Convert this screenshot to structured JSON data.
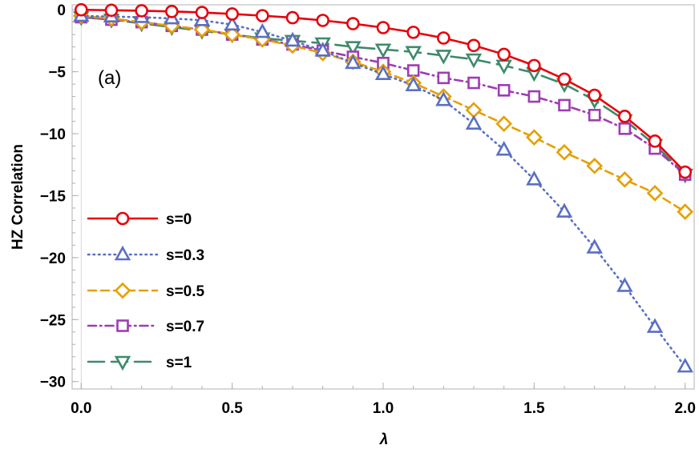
{
  "chart_data": {
    "type": "line",
    "title": "",
    "panel_label": "(a)",
    "xlabel": "λ",
    "ylabel": "HZ Correlation",
    "xlim": [
      -0.03,
      2.03
    ],
    "ylim": [
      -30.6,
      0.4
    ],
    "xticks": [
      0.0,
      0.5,
      1.0,
      1.5,
      2.0
    ],
    "xtick_labels": [
      "0.0",
      "0.5",
      "1.0",
      "1.5",
      "2.0"
    ],
    "yticks": [
      0,
      -5,
      -10,
      -15,
      -20,
      -25,
      -30
    ],
    "ytick_labels": [
      "0",
      "−5",
      "−10",
      "−15",
      "−20",
      "−25",
      "−30"
    ],
    "grid": false,
    "legend_position": "middle-left",
    "x": [
      0.0,
      0.1,
      0.2,
      0.3,
      0.4,
      0.5,
      0.6,
      0.7,
      0.8,
      0.9,
      1.0,
      1.1,
      1.2,
      1.3,
      1.4,
      1.5,
      1.6,
      1.7,
      1.8,
      1.9,
      2.0
    ],
    "series": [
      {
        "name": "s=0",
        "color": "#e8000b",
        "dash": "solid",
        "marker": "circle",
        "values": [
          0.0,
          -0.04,
          -0.08,
          -0.14,
          -0.22,
          -0.34,
          -0.48,
          -0.64,
          -0.86,
          -1.12,
          -1.44,
          -1.82,
          -2.28,
          -2.88,
          -3.6,
          -4.5,
          -5.6,
          -6.9,
          -8.6,
          -10.6,
          -13.1
        ]
      },
      {
        "name": "s=0.3",
        "color": "#5a6fc4",
        "dash": "dotted",
        "marker": "triangle-up",
        "values": [
          -0.5,
          -0.55,
          -0.6,
          -0.7,
          -0.85,
          -1.2,
          -1.8,
          -2.5,
          -3.3,
          -4.3,
          -5.2,
          -6.1,
          -7.3,
          -9.2,
          -11.3,
          -13.7,
          -16.3,
          -19.2,
          -22.3,
          -25.6,
          -28.8
        ]
      },
      {
        "name": "s=0.5",
        "color": "#e69f00",
        "dash": "dashed",
        "marker": "diamond",
        "values": [
          -0.5,
          -0.7,
          -1.0,
          -1.3,
          -1.6,
          -2.0,
          -2.4,
          -2.9,
          -3.5,
          -4.2,
          -5.0,
          -5.9,
          -7.0,
          -8.1,
          -9.2,
          -10.3,
          -11.5,
          -12.6,
          -13.7,
          -14.8,
          -16.3
        ]
      },
      {
        "name": "s=0.7",
        "color": "#9d3db2",
        "dash": "dashdot",
        "marker": "square",
        "values": [
          -0.6,
          -0.8,
          -1.0,
          -1.3,
          -1.6,
          -2.0,
          -2.4,
          -2.8,
          -3.3,
          -3.8,
          -4.3,
          -4.9,
          -5.5,
          -5.9,
          -6.5,
          -7.0,
          -7.7,
          -8.5,
          -9.6,
          -11.2,
          -13.3
        ]
      },
      {
        "name": "s=1",
        "color": "#3d8a6a",
        "dash": "longdash",
        "marker": "triangle-down",
        "values": [
          -0.6,
          -0.8,
          -1.1,
          -1.4,
          -1.7,
          -2.0,
          -2.3,
          -2.5,
          -2.7,
          -3.0,
          -3.2,
          -3.4,
          -3.7,
          -4.0,
          -4.5,
          -5.1,
          -6.0,
          -7.3,
          -8.9,
          -10.9,
          -13.3
        ]
      }
    ]
  }
}
